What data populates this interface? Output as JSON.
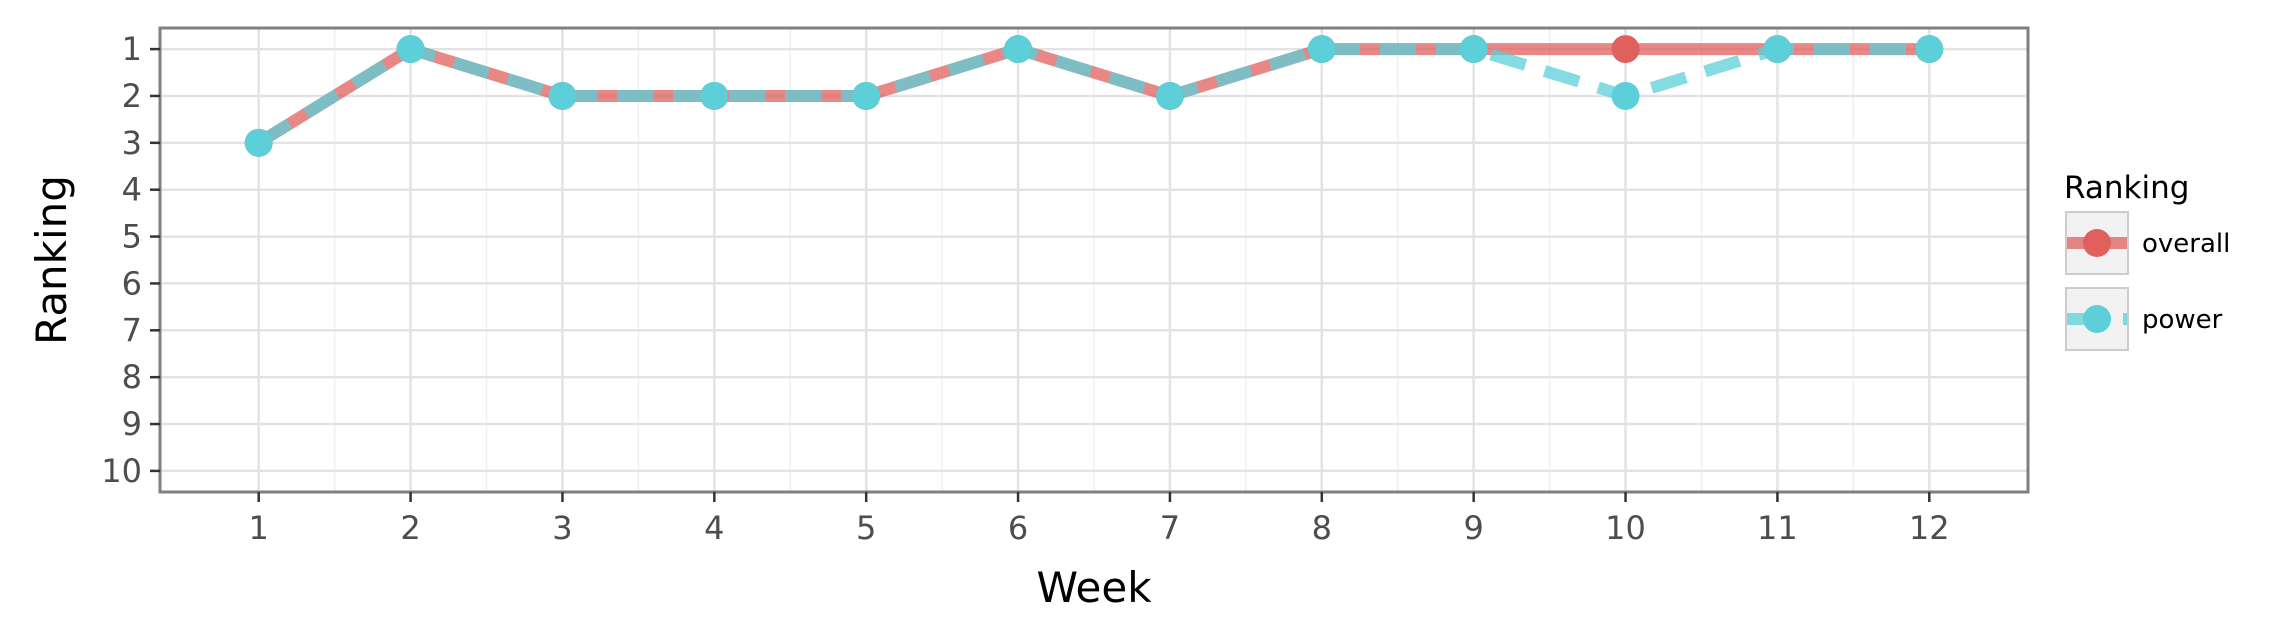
{
  "chart_data": {
    "type": "line",
    "title": "",
    "xlabel": "Week",
    "ylabel": "Ranking",
    "x": [
      1,
      2,
      3,
      4,
      5,
      6,
      7,
      8,
      9,
      10,
      11,
      12
    ],
    "x_tick_labels": [
      "1",
      "2",
      "3",
      "4",
      "5",
      "6",
      "7",
      "8",
      "9",
      "10",
      "11",
      "12"
    ],
    "y_tick_labels": [
      "1",
      "2",
      "3",
      "4",
      "5",
      "6",
      "7",
      "8",
      "9",
      "10"
    ],
    "y_ticks": [
      1,
      2,
      3,
      4,
      5,
      6,
      7,
      8,
      9,
      10
    ],
    "ylim": [
      10.45,
      0.55
    ],
    "xlim": [
      0.35,
      12.65
    ],
    "y_reversed": true,
    "grid": true,
    "legend": {
      "title": "Ranking",
      "position": "right"
    },
    "series": [
      {
        "name": "overall",
        "color": "#e0605d",
        "line_style": "solid",
        "values": [
          3,
          1,
          2,
          2,
          2,
          1,
          2,
          1,
          1,
          1,
          1,
          1
        ]
      },
      {
        "name": "power",
        "color": "#5ccfd8",
        "line_style": "dashed",
        "values": [
          3,
          1,
          2,
          2,
          2,
          1,
          2,
          1,
          1,
          2,
          1,
          1
        ]
      }
    ]
  }
}
